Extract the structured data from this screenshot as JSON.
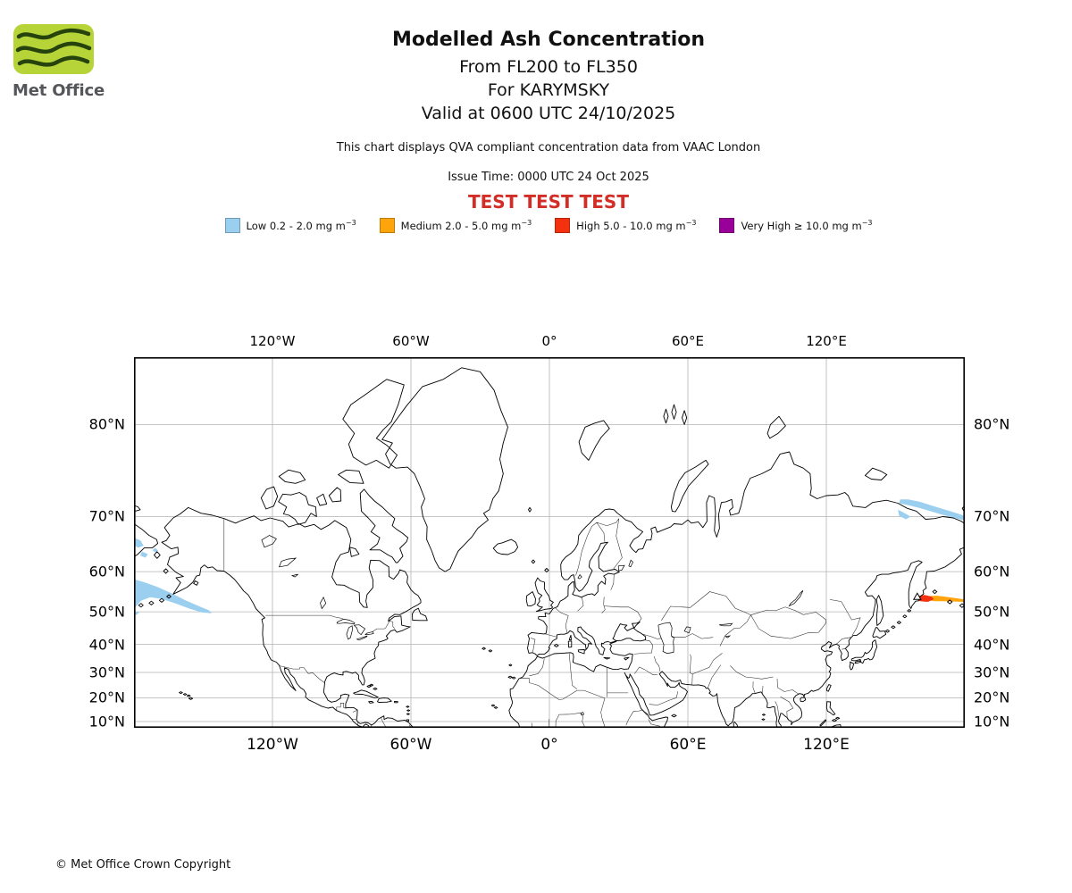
{
  "header": {
    "logo_text": "Met Office",
    "logo_green": "#b6d438",
    "logo_wave_color": "#27430d",
    "title": "Modelled Ash Concentration",
    "subtitle_fl": "From FL200 to FL350",
    "subtitle_volcano": "For KARYMSKY",
    "subtitle_valid": "Valid at 0600 UTC 24/10/2025",
    "qva_note": "This chart displays QVA compliant concentration data from VAAC London",
    "issue_time": "Issue Time: 0000 UTC 24 Oct 2025",
    "test_banner": "TEST TEST TEST",
    "test_banner_color": "#d22d26"
  },
  "legend": {
    "items": [
      {
        "name": "low",
        "label": "Low 0.2 - 2.0 mg m",
        "sup": "−3",
        "color": "#9acfef"
      },
      {
        "name": "medium",
        "label": "Medium 2.0 - 5.0 mg m",
        "sup": "−3",
        "color": "#ffa40b"
      },
      {
        "name": "high",
        "label": "High 5.0 - 10.0 mg m",
        "sup": "−3",
        "color": "#f3310f"
      },
      {
        "name": "very-high",
        "label": "Very High ≥ 10.0 mg m",
        "sup": "−3",
        "color": "#990099"
      }
    ]
  },
  "map": {
    "extent": {
      "lon_min": -180,
      "lon_max": 180,
      "lat_min": 7.3,
      "lat_max": 84
    },
    "lon_ticks": [
      {
        "label": "120°W",
        "lon": -120
      },
      {
        "label": "60°W",
        "lon": -60
      },
      {
        "label": "0°",
        "lon": 0
      },
      {
        "label": "60°E",
        "lon": 60
      },
      {
        "label": "120°E",
        "lon": 120
      }
    ],
    "lat_ticks": [
      {
        "label": "80°N",
        "lat": 80
      },
      {
        "label": "70°N",
        "lat": 70
      },
      {
        "label": "60°N",
        "lat": 60
      },
      {
        "label": "50°N",
        "lat": 50
      },
      {
        "label": "40°N",
        "lat": 40
      },
      {
        "label": "30°N",
        "lat": 30
      },
      {
        "label": "20°N",
        "lat": 20
      },
      {
        "label": "10°N",
        "lat": 10
      }
    ]
  },
  "footer": {
    "copyright": "© Met Office Crown Copyright"
  }
}
